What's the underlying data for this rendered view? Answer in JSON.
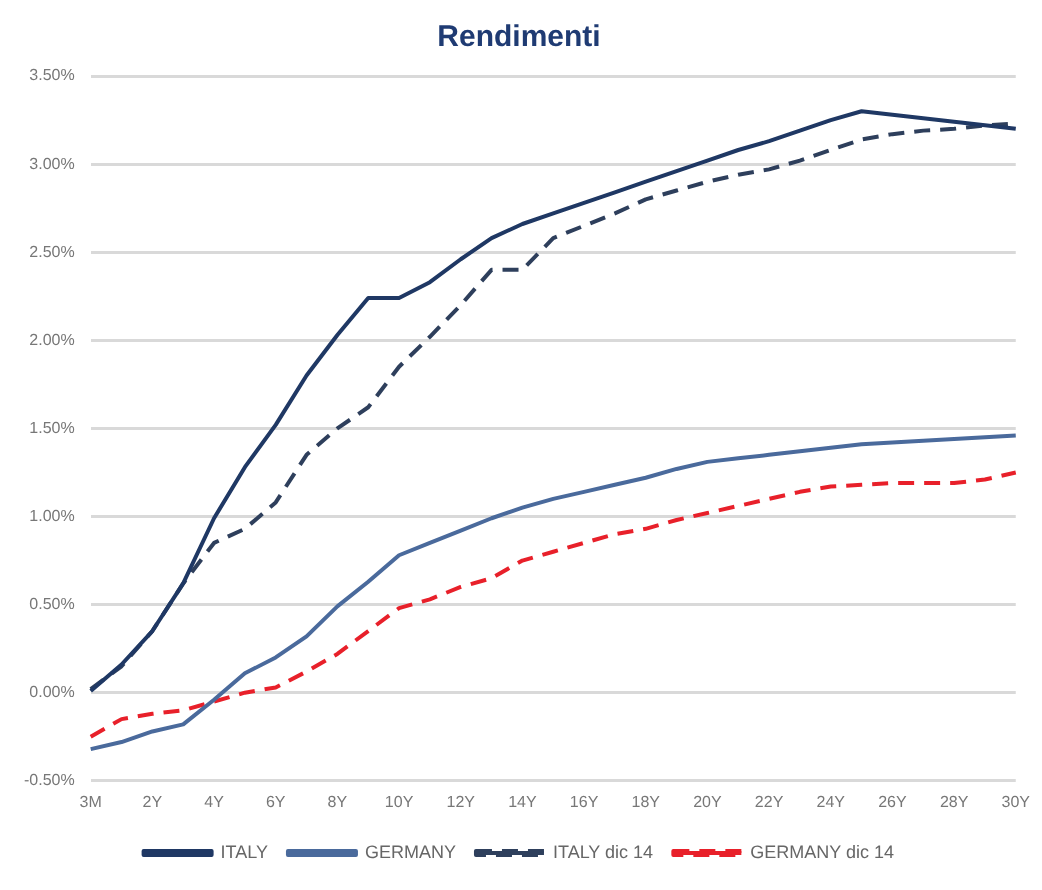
{
  "chart_data": {
    "type": "line",
    "title": "Rendimenti",
    "categories": [
      "3M",
      null,
      "2Y",
      null,
      "4Y",
      null,
      "6Y",
      null,
      "8Y",
      null,
      "10Y",
      null,
      "12Y",
      null,
      "14Y",
      null,
      "16Y",
      null,
      "18Y",
      null,
      "20Y",
      null,
      "22Y",
      null,
      "24Y",
      null,
      "26Y",
      null,
      "28Y",
      null,
      "30Y"
    ],
    "series": [
      {
        "name": "ITALY",
        "color": "#1f3864",
        "line_style": "solid",
        "values": [
          0.01,
          0.16,
          0.35,
          0.62,
          0.99,
          1.28,
          1.52,
          1.8,
          2.03,
          2.24,
          2.24,
          2.33,
          2.46,
          2.58,
          2.66,
          2.72,
          2.78,
          2.84,
          2.9,
          2.96,
          3.02,
          3.08,
          3.13,
          3.19,
          3.25,
          3.3,
          3.28,
          3.26,
          3.24,
          3.22,
          3.2
        ]
      },
      {
        "name": "GERMANY",
        "color": "#4a6a9c",
        "line_style": "solid",
        "values": [
          -0.32,
          -0.28,
          -0.22,
          -0.18,
          -0.04,
          0.11,
          0.2,
          0.32,
          0.49,
          0.63,
          0.78,
          0.85,
          0.92,
          0.99,
          1.05,
          1.1,
          1.14,
          1.18,
          1.22,
          1.27,
          1.31,
          1.33,
          1.35,
          1.37,
          1.39,
          1.41,
          1.42,
          1.43,
          1.44,
          1.45,
          1.46
        ]
      },
      {
        "name": "ITALY dic 14",
        "color": "#2e3f5c",
        "line_style": "dashed",
        "values": [
          0.02,
          0.15,
          0.35,
          0.62,
          0.85,
          0.93,
          1.08,
          1.35,
          1.5,
          1.62,
          1.85,
          2.02,
          2.2,
          2.4,
          2.4,
          2.58,
          2.65,
          2.72,
          2.8,
          2.85,
          2.9,
          2.94,
          2.97,
          3.02,
          3.08,
          3.14,
          3.17,
          3.19,
          3.2,
          3.22,
          3.23
        ]
      },
      {
        "name": "GERMANY dic 14",
        "color": "#e8202a",
        "line_style": "dashed",
        "values": [
          -0.25,
          -0.15,
          -0.12,
          -0.1,
          -0.05,
          0.0,
          0.03,
          0.12,
          0.22,
          0.35,
          0.48,
          0.53,
          0.6,
          0.65,
          0.75,
          0.8,
          0.85,
          0.9,
          0.93,
          0.98,
          1.02,
          1.06,
          1.1,
          1.14,
          1.17,
          1.18,
          1.19,
          1.19,
          1.19,
          1.21,
          1.25
        ]
      }
    ],
    "ylim": [
      -0.5,
      3.5
    ],
    "yticks": [
      {
        "value": -0.5,
        "label": "-0.50%"
      },
      {
        "value": 0,
        "label": "0.00%"
      },
      {
        "value": 0.5,
        "label": "0.50%"
      },
      {
        "value": 1,
        "label": "1.00%"
      },
      {
        "value": 1.5,
        "label": "1.50%"
      },
      {
        "value": 2,
        "label": "2.00%"
      },
      {
        "value": 2.5,
        "label": "2.50%"
      },
      {
        "value": 3,
        "label": "3.00%"
      },
      {
        "value": 3.5,
        "label": "3.50%"
      }
    ],
    "grid": "y",
    "legend": "bottom",
    "marker": "none"
  }
}
